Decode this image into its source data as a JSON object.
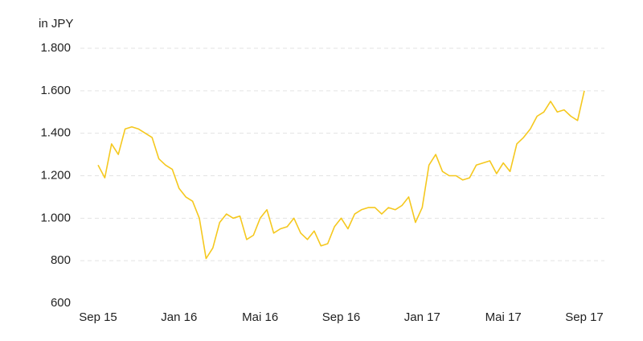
{
  "chart_data": {
    "type": "line",
    "y_label": "in JPY",
    "categories": [
      "Sep 15",
      null,
      null,
      null,
      null,
      null,
      null,
      null,
      null,
      null,
      null,
      null,
      "Jan 16",
      null,
      null,
      null,
      null,
      null,
      null,
      null,
      null,
      null,
      null,
      null,
      "Mai 16",
      null,
      null,
      null,
      null,
      null,
      null,
      null,
      null,
      null,
      null,
      null,
      "Sep 16",
      null,
      null,
      null,
      null,
      null,
      null,
      null,
      null,
      null,
      null,
      null,
      "Jan 17",
      null,
      null,
      null,
      null,
      null,
      null,
      null,
      null,
      null,
      null,
      null,
      "Mai 17",
      null,
      null,
      null,
      null,
      null,
      null,
      null,
      null,
      null,
      null,
      null,
      "Sep 17"
    ],
    "values": [
      1250,
      1190,
      1350,
      1300,
      1420,
      1430,
      1420,
      1400,
      1380,
      1280,
      1250,
      1230,
      1140,
      1100,
      1080,
      1000,
      810,
      860,
      980,
      1020,
      1000,
      1010,
      900,
      920,
      1000,
      1040,
      930,
      950,
      960,
      1000,
      930,
      900,
      940,
      870,
      880,
      960,
      1000,
      950,
      1020,
      1040,
      1050,
      1050,
      1020,
      1050,
      1040,
      1060,
      1100,
      980,
      1050,
      1250,
      1300,
      1220,
      1200,
      1200,
      1180,
      1190,
      1250,
      1260,
      1270,
      1210,
      1260,
      1220,
      1350,
      1380,
      1420,
      1480,
      1500,
      1550,
      1500,
      1510,
      1480,
      1460,
      1600
    ],
    "color": "#f5c81e",
    "ylim": [
      600,
      1800
    ],
    "yticks": [
      600,
      800,
      {
        "value": 1000,
        "label": "1.000"
      },
      {
        "value": 1200,
        "label": "1.200"
      },
      {
        "value": 1400,
        "label": "1.400"
      },
      {
        "value": 1600,
        "label": "1.600"
      },
      {
        "value": 1800,
        "label": "1.800"
      }
    ],
    "grid": true
  }
}
